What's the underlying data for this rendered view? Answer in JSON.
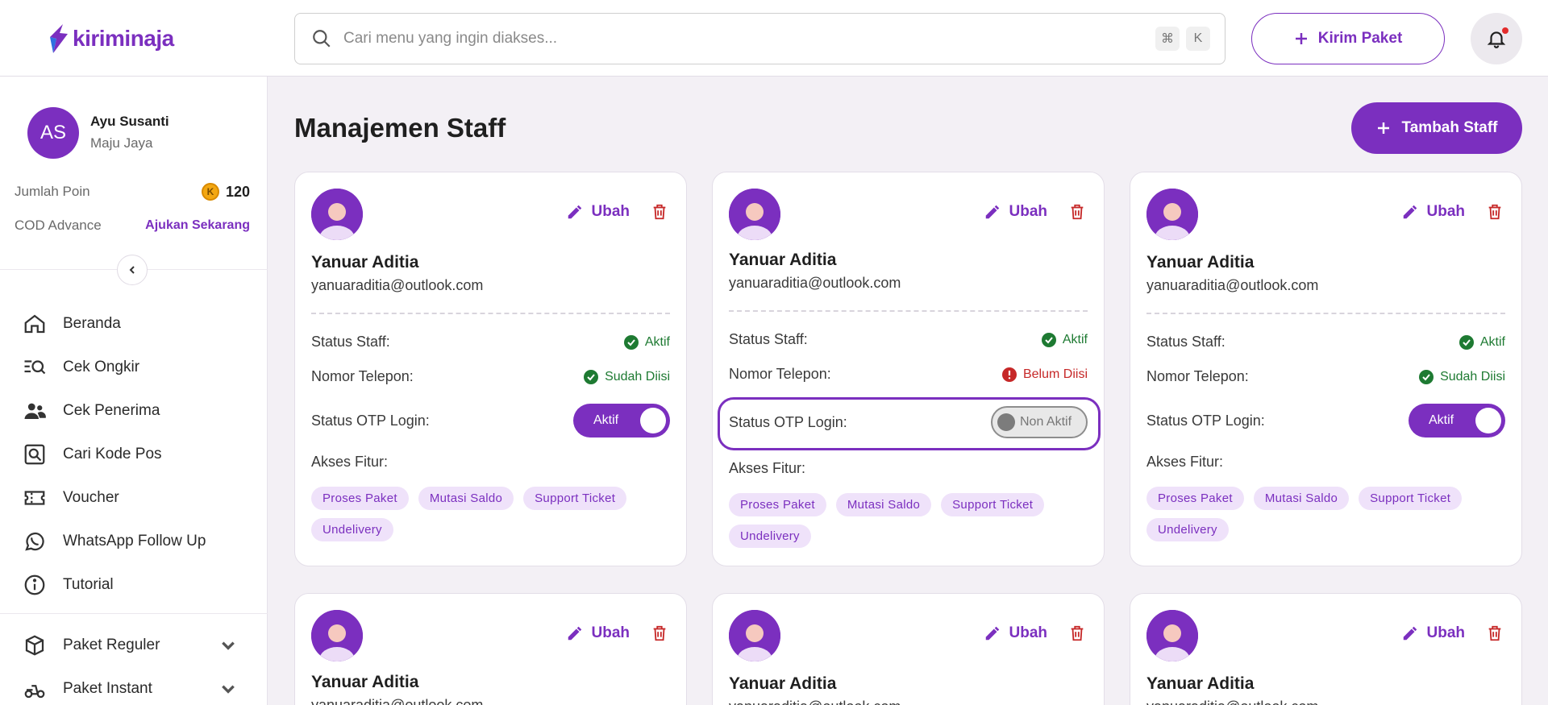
{
  "brand": {
    "name": "kiriminaja",
    "accent": "#7b2fbf"
  },
  "search": {
    "placeholder": "Cari menu yang ingin diakses...",
    "shortcut_keys": [
      "⌘",
      "K"
    ]
  },
  "header": {
    "kirim_label": "Kirim Paket"
  },
  "user": {
    "initials": "AS",
    "name": "Ayu Susanti",
    "company": "Maju Jaya",
    "poin_label": "Jumlah Poin",
    "poin_value": "120",
    "cod_label": "COD Advance",
    "cod_action": "Ajukan Sekarang"
  },
  "sidebar": {
    "items": [
      {
        "label": "Beranda",
        "icon": "home-icon"
      },
      {
        "label": "Cek Ongkir",
        "icon": "search-list-icon"
      },
      {
        "label": "Cek Penerima",
        "icon": "users-icon"
      },
      {
        "label": "Cari Kode Pos",
        "icon": "map-search-icon"
      },
      {
        "label": "Voucher",
        "icon": "ticket-icon"
      },
      {
        "label": "WhatsApp Follow Up",
        "icon": "whatsapp-icon"
      },
      {
        "label": "Tutorial",
        "icon": "info-icon"
      },
      {
        "label": "Paket Reguler",
        "icon": "box-icon"
      },
      {
        "label": "Paket Instant",
        "icon": "scooter-icon"
      }
    ]
  },
  "main": {
    "title": "Manajemen Staff",
    "add_label": "Tambah Staff",
    "labels": {
      "edit": "Ubah",
      "status_staff": "Status Staff:",
      "phone": "Nomor Telepon:",
      "otp": "Status OTP Login:",
      "access": "Akses Fitur:"
    },
    "cards": [
      {
        "name": "Yanuar Aditia",
        "email": "yanuaraditia@outlook.com",
        "status": "Aktif",
        "phone_status": "Sudah Diisi",
        "phone_ok": true,
        "otp": "Aktif",
        "otp_on": true,
        "features": [
          "Proses Paket",
          "Mutasi Saldo",
          "Support Ticket",
          "Undelivery"
        ]
      },
      {
        "name": "Yanuar Aditia",
        "email": "yanuaraditia@outlook.com",
        "status": "Aktif",
        "phone_status": "Belum Diisi",
        "phone_ok": false,
        "otp": "Non Aktif",
        "otp_on": false,
        "features": [
          "Proses Paket",
          "Mutasi Saldo",
          "Support Ticket",
          "Undelivery"
        ]
      },
      {
        "name": "Yanuar Aditia",
        "email": "yanuaraditia@outlook.com",
        "status": "Aktif",
        "phone_status": "Sudah Diisi",
        "phone_ok": true,
        "otp": "Aktif",
        "otp_on": true,
        "features": [
          "Proses Paket",
          "Mutasi Saldo",
          "Support Ticket",
          "Undelivery"
        ]
      },
      {
        "name": "Yanuar Aditia",
        "email": "yanuaraditia@outlook.com"
      },
      {
        "name": "Yanuar Aditia",
        "email": "yanuaraditia@outlook.com"
      },
      {
        "name": "Yanuar Aditia",
        "email": "yanuaraditia@outlook.com"
      }
    ]
  }
}
